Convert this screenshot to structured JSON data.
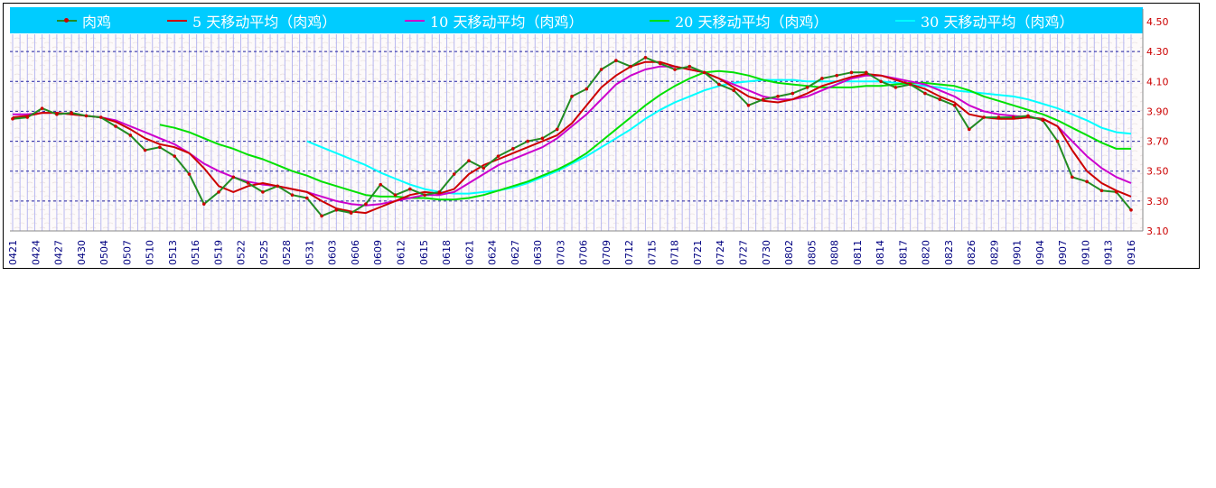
{
  "chart_data": {
    "type": "line",
    "title": "",
    "xlabel": "",
    "ylabel": "",
    "ylim": [
      3.1,
      4.5
    ],
    "y_ticks": [
      "4.50",
      "4.30",
      "4.10",
      "3.90",
      "3.70",
      "3.50",
      "3.30",
      "3.10"
    ],
    "y_tick_values": [
      4.5,
      4.3,
      4.1,
      3.9,
      3.7,
      3.5,
      3.3,
      3.1
    ],
    "x_ticks": [
      "0421",
      "0424",
      "0427",
      "0430",
      "0504",
      "0507",
      "0510",
      "0513",
      "0516",
      "0519",
      "0522",
      "0525",
      "0528",
      "0531",
      "0603",
      "0606",
      "0609",
      "0612",
      "0615",
      "0618",
      "0621",
      "0624",
      "0627",
      "0630",
      "0703",
      "0706",
      "0709",
      "0712",
      "0715",
      "0718",
      "0721",
      "0724",
      "0727",
      "0730",
      "0802",
      "0805",
      "0808",
      "0811",
      "0814",
      "0817",
      "0820",
      "0823",
      "0826",
      "0829",
      "0901",
      "0904",
      "0907",
      "0910",
      "0913",
      "0916"
    ],
    "series": [
      {
        "name": "肉鸡",
        "color": "#228b22",
        "marker_color": "#cc0000",
        "values": [
          3.85,
          3.86,
          3.92,
          3.88,
          3.89,
          3.87,
          3.86,
          3.8,
          3.74,
          3.64,
          3.66,
          3.6,
          3.48,
          3.28,
          3.36,
          3.46,
          3.42,
          3.36,
          3.4,
          3.34,
          3.32,
          3.2,
          3.24,
          3.22,
          3.28,
          3.41,
          3.34,
          3.38,
          3.34,
          3.36,
          3.48,
          3.57,
          3.52,
          3.6,
          3.65,
          3.7,
          3.72,
          3.78,
          4.0,
          4.05,
          4.18,
          4.24,
          4.2,
          4.26,
          4.22,
          4.18,
          4.2,
          4.16,
          4.08,
          4.04,
          3.94,
          3.98,
          4.0,
          4.02,
          4.06,
          4.12,
          4.14,
          4.16,
          4.16,
          4.1,
          4.06,
          4.08,
          4.02,
          3.98,
          3.94,
          3.78,
          3.86,
          3.86,
          3.86,
          3.87,
          3.84,
          3.7,
          3.46,
          3.43,
          3.37,
          3.36,
          3.24
        ]
      },
      {
        "name": "5 天移动平均（肉鸡）",
        "color": "#cc0000",
        "values": [
          3.86,
          3.87,
          3.89,
          3.89,
          3.88,
          3.87,
          3.86,
          3.83,
          3.78,
          3.72,
          3.68,
          3.66,
          3.62,
          3.52,
          3.4,
          3.36,
          3.4,
          3.42,
          3.4,
          3.38,
          3.36,
          3.3,
          3.25,
          3.23,
          3.22,
          3.26,
          3.3,
          3.34,
          3.36,
          3.35,
          3.38,
          3.48,
          3.54,
          3.58,
          3.62,
          3.66,
          3.7,
          3.74,
          3.82,
          3.94,
          4.06,
          4.14,
          4.2,
          4.23,
          4.23,
          4.2,
          4.18,
          4.16,
          4.12,
          4.06,
          4.0,
          3.97,
          3.96,
          3.98,
          4.02,
          4.07,
          4.1,
          4.13,
          4.15,
          4.14,
          4.11,
          4.08,
          4.05,
          4.0,
          3.96,
          3.88,
          3.86,
          3.85,
          3.85,
          3.86,
          3.85,
          3.8,
          3.64,
          3.5,
          3.42,
          3.37,
          3.33
        ]
      },
      {
        "name": "10 天移动平均（肉鸡）",
        "color": "#cc00cc",
        "values": [
          3.88,
          3.88,
          3.89,
          3.89,
          3.88,
          3.87,
          3.86,
          3.84,
          3.8,
          3.76,
          3.72,
          3.68,
          3.62,
          3.55,
          3.5,
          3.46,
          3.43,
          3.41,
          3.4,
          3.38,
          3.36,
          3.33,
          3.3,
          3.28,
          3.27,
          3.28,
          3.3,
          3.32,
          3.34,
          3.34,
          3.36,
          3.42,
          3.48,
          3.54,
          3.58,
          3.62,
          3.66,
          3.72,
          3.8,
          3.88,
          3.98,
          4.08,
          4.14,
          4.18,
          4.2,
          4.2,
          4.18,
          4.16,
          4.12,
          4.08,
          4.04,
          4.0,
          3.98,
          3.98,
          4.0,
          4.04,
          4.08,
          4.12,
          4.14,
          4.14,
          4.12,
          4.1,
          4.08,
          4.04,
          4.0,
          3.94,
          3.9,
          3.88,
          3.87,
          3.86,
          3.85,
          3.8,
          3.7,
          3.6,
          3.52,
          3.46,
          3.42
        ]
      },
      {
        "name": "20 天移动平均（肉鸡）",
        "color": "#00e000",
        "start": 10,
        "values": [
          null,
          null,
          null,
          null,
          null,
          null,
          null,
          null,
          null,
          null,
          3.81,
          3.79,
          3.76,
          3.72,
          3.68,
          3.65,
          3.61,
          3.58,
          3.54,
          3.5,
          3.47,
          3.43,
          3.4,
          3.37,
          3.34,
          3.33,
          3.33,
          3.32,
          3.32,
          3.31,
          3.31,
          3.32,
          3.34,
          3.37,
          3.4,
          3.43,
          3.47,
          3.51,
          3.56,
          3.62,
          3.7,
          3.78,
          3.86,
          3.94,
          4.01,
          4.07,
          4.12,
          4.16,
          4.17,
          4.16,
          4.14,
          4.11,
          4.09,
          4.08,
          4.07,
          4.06,
          4.06,
          4.06,
          4.07,
          4.07,
          4.08,
          4.09,
          4.09,
          4.08,
          4.07,
          4.04,
          4.0,
          3.97,
          3.94,
          3.91,
          3.88,
          3.84,
          3.79,
          3.74,
          3.69,
          3.65,
          3.65
        ]
      },
      {
        "name": "30 天移动平均（肉鸡）",
        "color": "#00ffff",
        "start": 20,
        "values": [
          null,
          null,
          null,
          null,
          null,
          null,
          null,
          null,
          null,
          null,
          null,
          null,
          null,
          null,
          null,
          null,
          null,
          null,
          null,
          null,
          3.7,
          3.66,
          3.62,
          3.58,
          3.54,
          3.49,
          3.45,
          3.41,
          3.38,
          3.36,
          3.35,
          3.35,
          3.36,
          3.37,
          3.39,
          3.42,
          3.46,
          3.5,
          3.55,
          3.6,
          3.66,
          3.72,
          3.78,
          3.85,
          3.91,
          3.96,
          4.0,
          4.04,
          4.07,
          4.09,
          4.1,
          4.11,
          4.11,
          4.11,
          4.1,
          4.1,
          4.1,
          4.1,
          4.1,
          4.1,
          4.09,
          4.08,
          4.07,
          4.06,
          4.04,
          4.03,
          4.02,
          4.01,
          4.0,
          3.98,
          3.95,
          3.92,
          3.88,
          3.84,
          3.79,
          3.76,
          3.75
        ]
      }
    ],
    "grid": true,
    "legend": "top",
    "colors": {
      "legend_background": "#00ccff",
      "legend_text": "#ffffff",
      "plot_background": "#fdfafa",
      "vertical_hatch": "#b8b8f0",
      "grid_lines": "#2020a0",
      "y_tick_color": "#cc0000",
      "x_tick_color": "#000080"
    }
  }
}
